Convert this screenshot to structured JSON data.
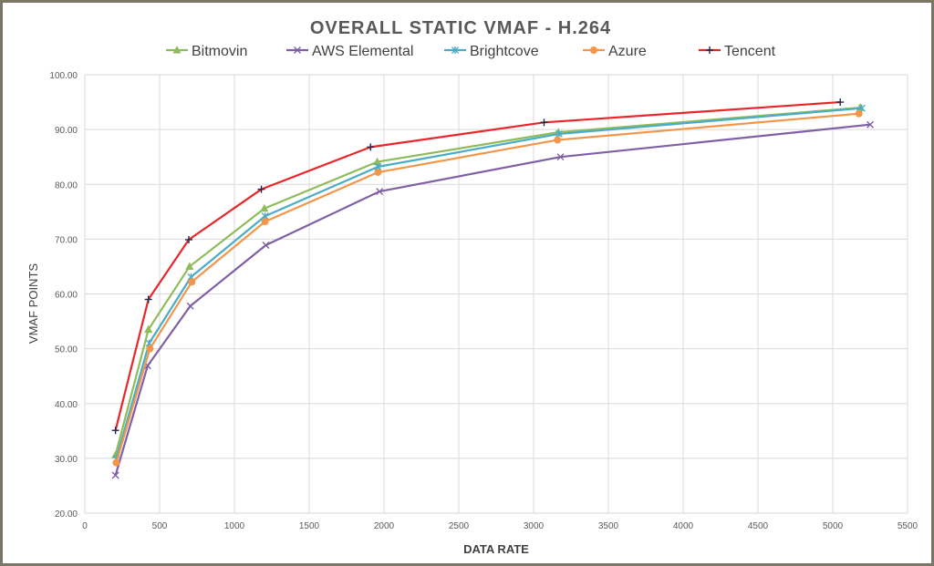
{
  "chart_data": {
    "type": "line",
    "title": "OVERALL STATIC VMAF - H.264",
    "xlabel": "DATA RATE",
    "ylabel": "VMAF POINTS",
    "xlim": [
      0,
      5500
    ],
    "ylim": [
      20,
      100
    ],
    "x_ticks": [
      "0",
      "500",
      "1000",
      "1500",
      "2000",
      "2500",
      "3000",
      "3500",
      "4000",
      "4500",
      "5000",
      "5500"
    ],
    "y_ticks": [
      "20.00",
      "30.00",
      "40.00",
      "50.00",
      "60.00",
      "70.00",
      "80.00",
      "90.00",
      "100.00"
    ],
    "grid": true,
    "legend_position": "top",
    "series": [
      {
        "name": "Bitmovin",
        "color": "#8fbc5a",
        "marker": "triangle",
        "x": [
          205,
          425,
          700,
          1200,
          1955,
          3165,
          5185
        ],
        "y": [
          30.6,
          53.5,
          65.0,
          75.6,
          84.1,
          89.5,
          94.0
        ]
      },
      {
        "name": "AWS Elemental",
        "color": "#7f5fa5",
        "marker": "x",
        "x": [
          205,
          420,
          705,
          1210,
          1970,
          3180,
          5250
        ],
        "y": [
          26.9,
          46.9,
          57.8,
          68.9,
          78.7,
          85.0,
          90.9
        ]
      },
      {
        "name": "Brightcove",
        "color": "#4bacc6",
        "marker": "star",
        "x": [
          210,
          430,
          710,
          1205,
          1960,
          3170,
          5195
        ],
        "y": [
          29.9,
          51.0,
          63.1,
          74.2,
          83.2,
          89.2,
          93.9
        ]
      },
      {
        "name": "Azure",
        "color": "#f3964a",
        "marker": "circle",
        "x": [
          210,
          435,
          715,
          1205,
          1960,
          3160,
          5175
        ],
        "y": [
          29.2,
          50.0,
          62.2,
          73.2,
          82.2,
          88.1,
          92.9
        ]
      },
      {
        "name": "Tencent",
        "color": "#e8262b",
        "marker": "plus",
        "x": [
          205,
          425,
          695,
          1180,
          1910,
          3070,
          5050
        ],
        "y": [
          35.1,
          59.0,
          69.9,
          79.1,
          86.8,
          91.3,
          95.0
        ]
      }
    ]
  }
}
